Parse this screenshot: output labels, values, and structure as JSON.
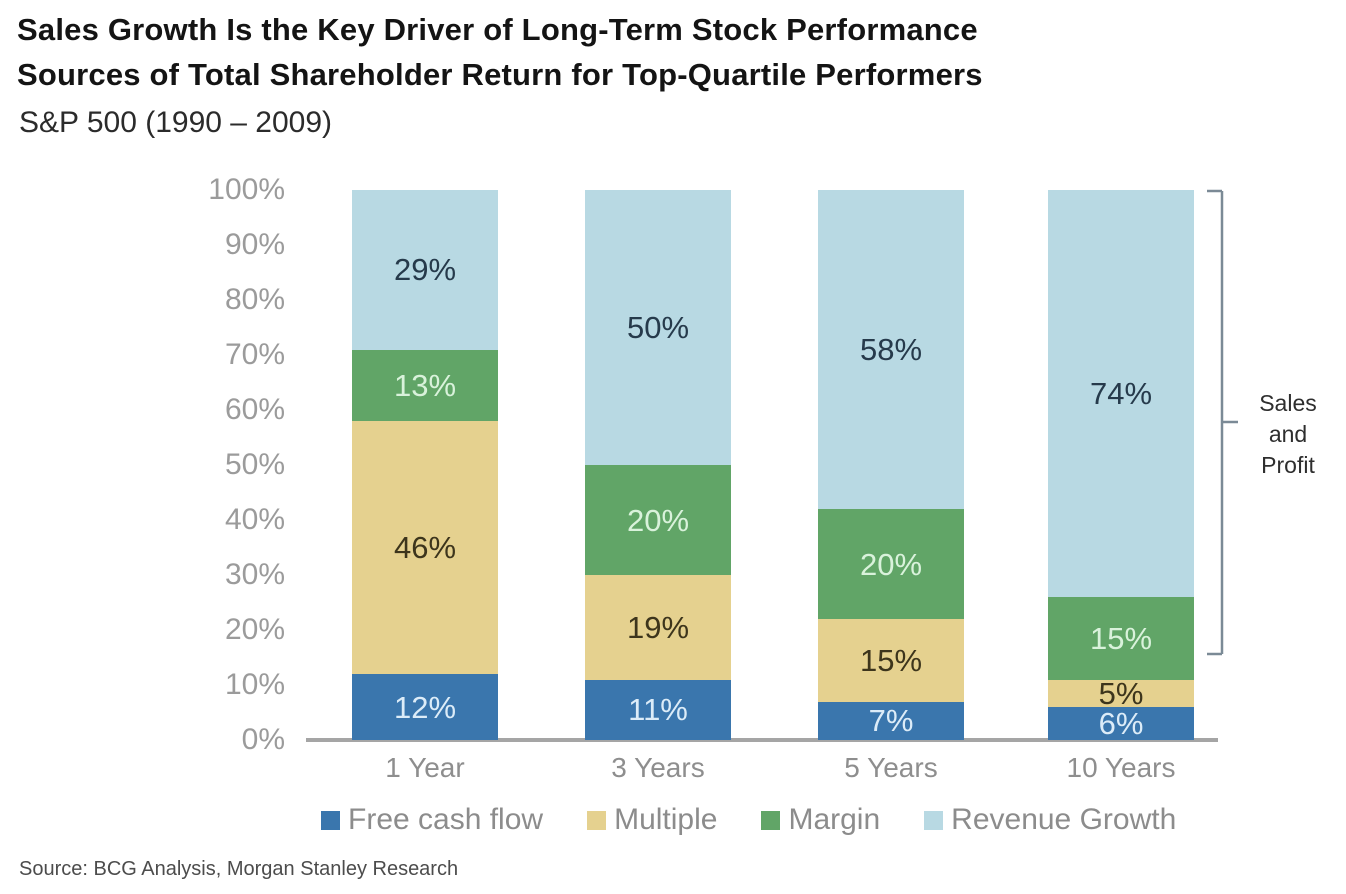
{
  "header": {
    "title_line1": "Sales Growth Is the Key Driver of Long-Term Stock Performance",
    "title_line2": "Sources of Total Shareholder Return for Top-Quartile Performers",
    "subtitle": "S&P 500 (1990 – 2009)"
  },
  "chart_data": {
    "type": "bar",
    "stacked": true,
    "title": "Sources of Total Shareholder Return for Top-Quartile Performers",
    "subtitle": "S&P 500 (1990 – 2009)",
    "categories": [
      "1 Year",
      "3 Years",
      "5 Years",
      "10 Years"
    ],
    "series": [
      {
        "name": "Free cash flow",
        "color": "#3a76ad",
        "label_color": "#dcecf8",
        "values": [
          12,
          11,
          7,
          6
        ]
      },
      {
        "name": "Multiple",
        "color": "#e5d18f",
        "label_color": "#3d351c",
        "values": [
          46,
          19,
          15,
          5
        ]
      },
      {
        "name": "Margin",
        "color": "#61a567",
        "label_color": "#d9f2db",
        "values": [
          13,
          20,
          20,
          15
        ]
      },
      {
        "name": "Revenue Growth",
        "color": "#b8d9e3",
        "label_color": "#263a4b",
        "values": [
          29,
          50,
          58,
          74
        ]
      }
    ],
    "value_suffix": "%",
    "y_ticks": [
      "0%",
      "10%",
      "20%",
      "30%",
      "40%",
      "50%",
      "60%",
      "70%",
      "80%",
      "90%",
      "100%"
    ],
    "ylim": [
      0,
      100
    ],
    "grid": false,
    "legend_position": "bottom"
  },
  "annotation": {
    "bracket_label_lines": [
      "Sales",
      "and",
      "Profit"
    ]
  },
  "footer": {
    "source": "Source: BCG Analysis, Morgan Stanley Research"
  }
}
